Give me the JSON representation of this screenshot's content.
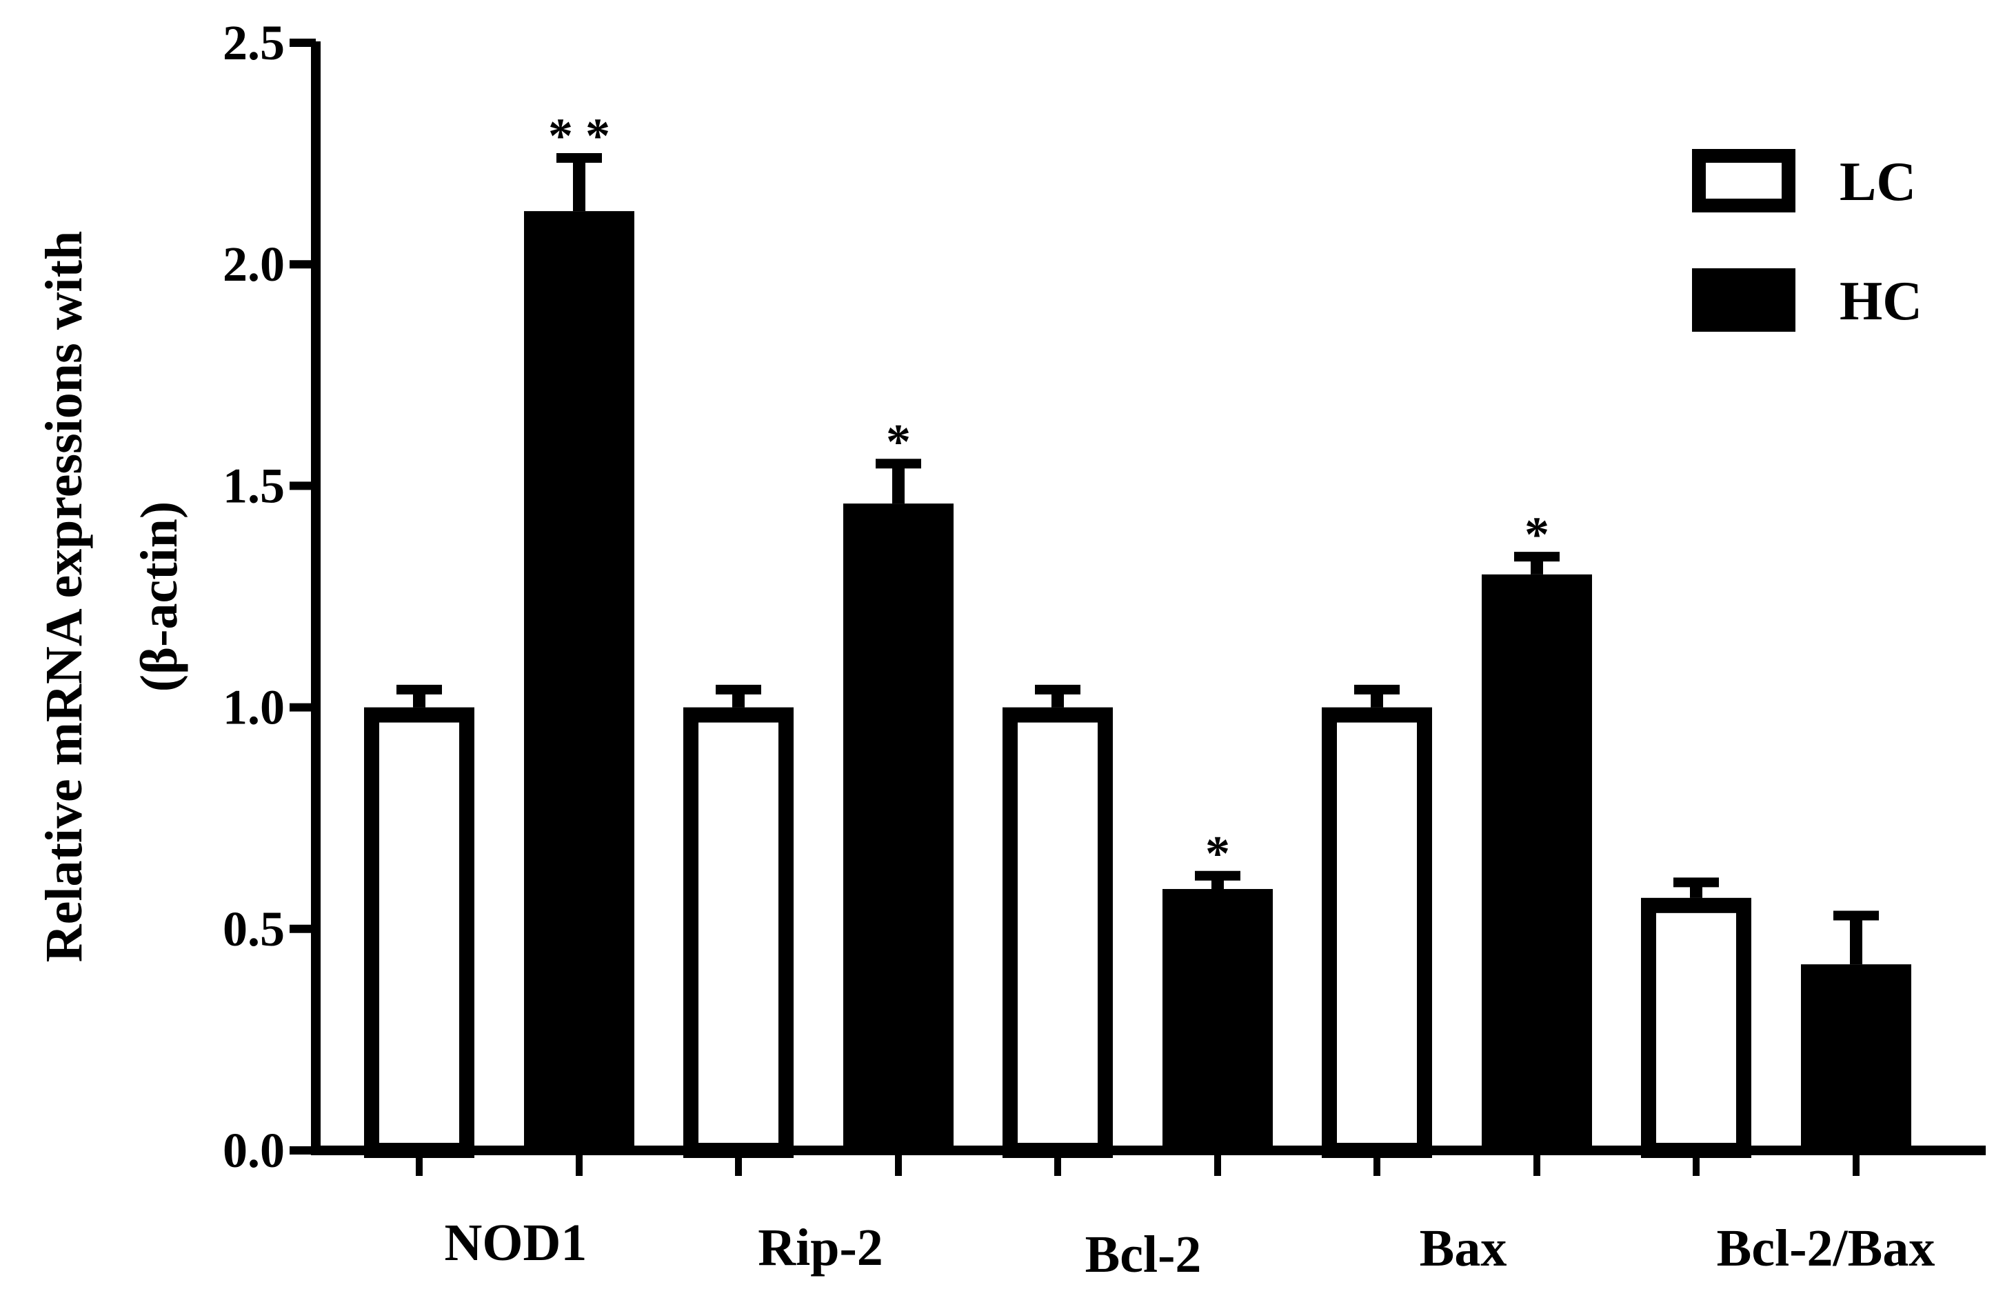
{
  "chart_data": {
    "type": "bar",
    "ylabel_line1": "Relative mRNA expressions  with",
    "ylabel_line2": "(β-actin)",
    "ylim": [
      0,
      2.5
    ],
    "yticks": [
      "0.0",
      "0.5",
      "1.0",
      "1.5",
      "2.0",
      "2.5"
    ],
    "categories": [
      "NOD1",
      "Rip-2",
      "Bcl-2",
      "Bax",
      "Bcl-2/Bax"
    ],
    "series": [
      {
        "name": "LC",
        "fill": "#ffffff",
        "values": [
          1.0,
          1.0,
          1.0,
          1.0,
          0.57
        ],
        "errors": [
          0.04,
          0.04,
          0.04,
          0.04,
          0.035
        ],
        "marks": [
          "",
          "",
          "",
          "",
          ""
        ]
      },
      {
        "name": "HC",
        "fill": "#000000",
        "values": [
          2.12,
          1.46,
          0.59,
          1.3,
          0.42
        ],
        "errors": [
          0.12,
          0.09,
          0.03,
          0.04,
          0.11
        ],
        "marks": [
          "* *",
          "*",
          "*",
          "*",
          ""
        ]
      }
    ],
    "legend_position": "top-right",
    "grid": false
  }
}
